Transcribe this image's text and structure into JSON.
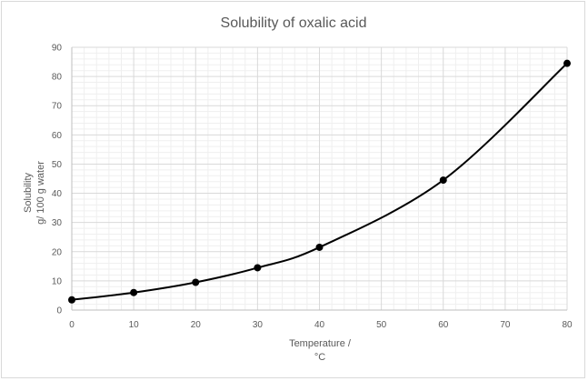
{
  "chart_data": {
    "type": "line",
    "title": "Solubility of oxalic acid",
    "xlabel_lines": [
      "Temperature /",
      "°C"
    ],
    "ylabel_lines": [
      "Solubility",
      "g/ 100 g water"
    ],
    "x": [
      0,
      10,
      20,
      30,
      40,
      60,
      80
    ],
    "y": [
      3.5,
      6,
      9.5,
      14.5,
      21.5,
      44.5,
      84.5
    ],
    "xlim": [
      0,
      80
    ],
    "ylim": [
      0,
      90
    ],
    "x_ticks": [
      0,
      10,
      20,
      30,
      40,
      50,
      60,
      70,
      80
    ],
    "y_ticks": [
      0,
      10,
      20,
      30,
      40,
      50,
      60,
      70,
      80,
      90
    ],
    "x_tick_labels": [
      "0",
      "10",
      "20",
      "30",
      "40",
      "50",
      "60",
      "70",
      "80"
    ],
    "y_tick_labels": [
      "0",
      "10",
      "20",
      "30",
      "40",
      "50",
      "60",
      "70",
      "80",
      "90"
    ],
    "grid": true,
    "minor_grid": true,
    "smooth": true,
    "markers": true,
    "legend": "none",
    "colors": {
      "line": "#000000",
      "marker": "#000000",
      "major_grid": "#d9d9d9",
      "minor_grid": "#efefef",
      "text": "#595959"
    }
  }
}
